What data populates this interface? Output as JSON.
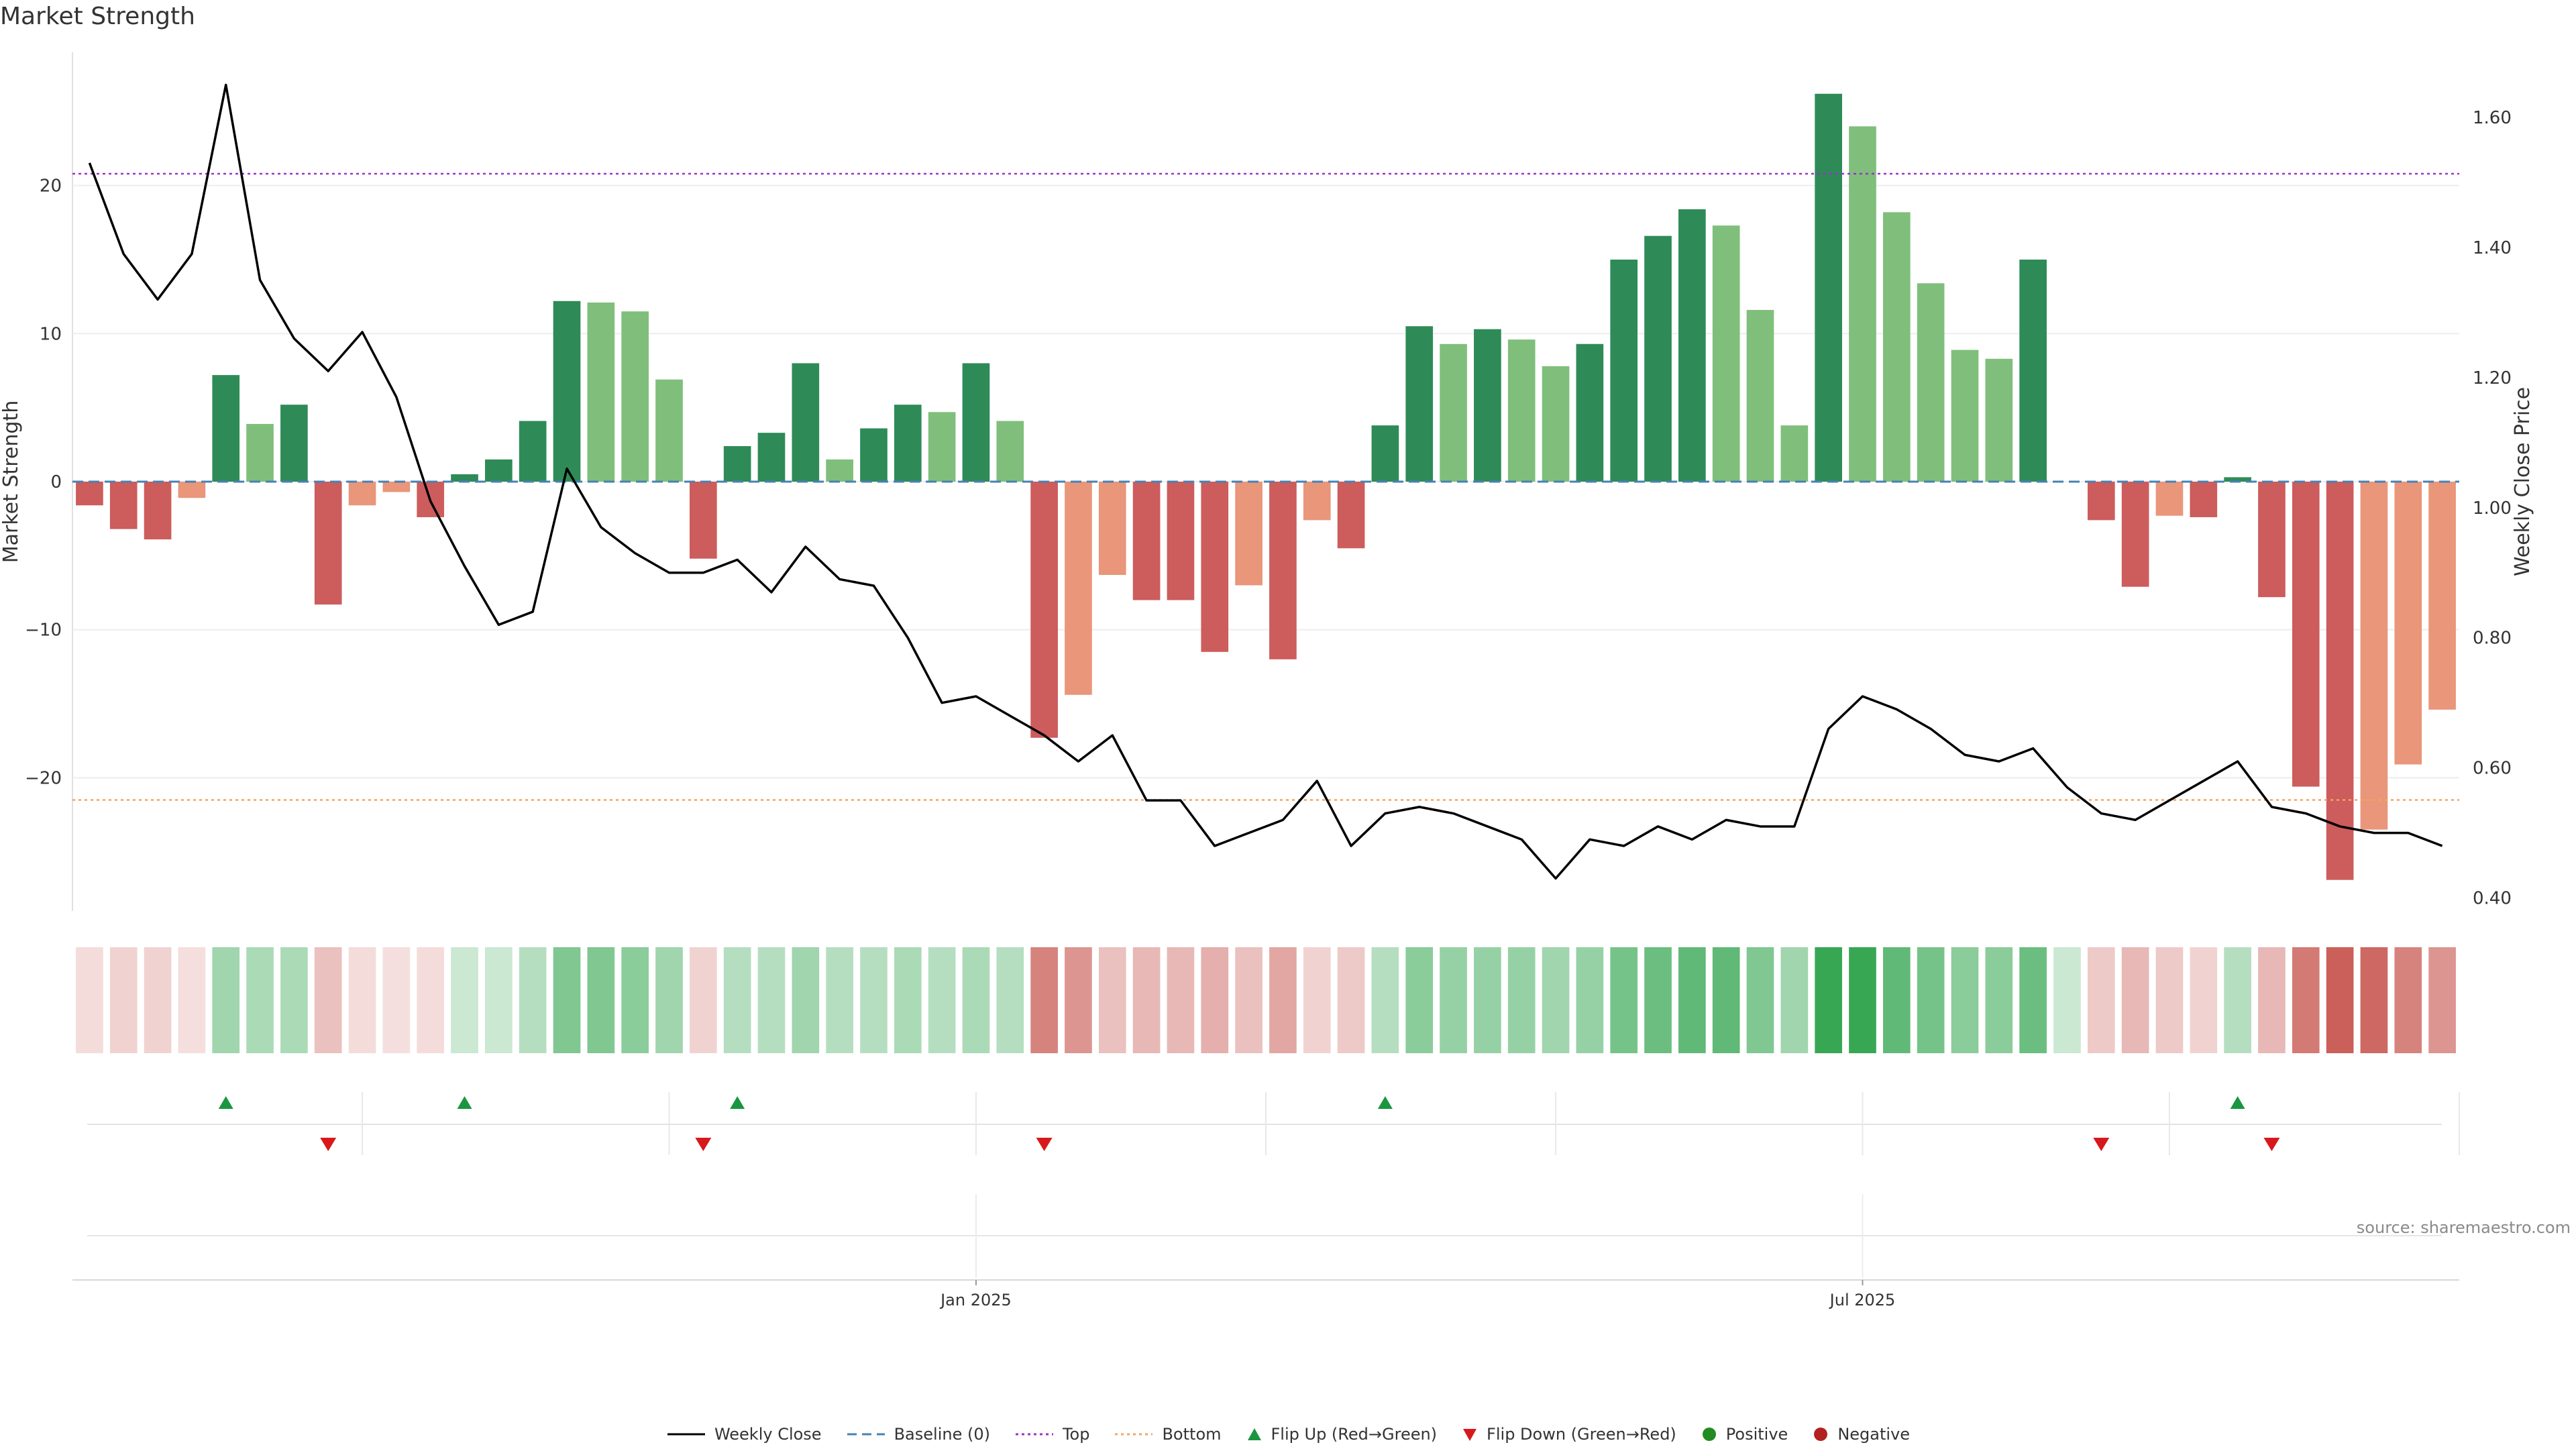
{
  "title": "Market Strength",
  "source": "source: sharemaestro.com",
  "colors": {
    "pos_dark": "#2e8b57",
    "pos_light": "#7fbf7b",
    "neg_dark": "#cd5c5c",
    "neg_light": "#e9967a",
    "weekly_close": "#000000",
    "baseline": "#4682b4",
    "top": "#9932cc",
    "bottom": "#f4a460",
    "flip_up": "#1a9641",
    "flip_down": "#d7191c",
    "positive_dot": "#228b22",
    "negative_dot": "#b22222"
  },
  "legend": [
    {
      "key": "weekly_close",
      "label": "Weekly Close",
      "kind": "line"
    },
    {
      "key": "baseline",
      "label": "Baseline (0)",
      "kind": "dash"
    },
    {
      "key": "top",
      "label": "Top",
      "kind": "dot"
    },
    {
      "key": "bottom",
      "label": "Bottom",
      "kind": "dot"
    },
    {
      "key": "flip_up",
      "label": "Flip Up (Red→Green)",
      "kind": "tri-up"
    },
    {
      "key": "flip_down",
      "label": "Flip Down (Green→Red)",
      "kind": "tri-down"
    },
    {
      "key": "positive_dot",
      "label": "Positive",
      "kind": "circle"
    },
    {
      "key": "negative_dot",
      "label": "Negative",
      "kind": "circle"
    }
  ],
  "chart_data": {
    "type": "bar",
    "ylabel_left": "Market Strength",
    "ylabel_right": "Weekly Close Price",
    "y_left": {
      "min": -29,
      "max": 29,
      "ticks": [
        -20,
        -10,
        0,
        10,
        20
      ]
    },
    "y_right": {
      "min": 0.38,
      "max": 1.7,
      "ticks": [
        "0.40",
        "0.60",
        "0.80",
        "1.00",
        "1.20",
        "1.40",
        "1.60"
      ]
    },
    "x_ticks": [
      {
        "index": 26,
        "label": "Jan 2025"
      },
      {
        "index": 52,
        "label": "Jul 2025"
      }
    ],
    "top_level": 20.8,
    "bottom_level": -21.5,
    "baseline": 0,
    "strength": [
      -1.6,
      -3.2,
      -3.9,
      -1.1,
      7.2,
      3.9,
      5.2,
      -8.3,
      -1.6,
      -0.7,
      -2.4,
      0.5,
      1.5,
      4.1,
      12.2,
      12.1,
      11.5,
      6.9,
      -5.2,
      2.4,
      3.3,
      8.0,
      1.5,
      3.6,
      5.2,
      4.7,
      8.0,
      4.1,
      -17.3,
      -14.4,
      -6.3,
      -8.0,
      -8.0,
      -11.5,
      -7.0,
      -12.0,
      -2.6,
      -4.5,
      3.8,
      10.5,
      9.3,
      10.3,
      9.6,
      7.8,
      9.3,
      15.0,
      16.6,
      18.4,
      17.3,
      11.6,
      3.8,
      26.2,
      24.0,
      18.2,
      13.4,
      8.9,
      8.3,
      15.0,
      0.0,
      -2.6,
      -7.1,
      -2.3,
      -2.4,
      0.3,
      -7.8,
      -20.6,
      -26.9,
      -23.5,
      -19.1,
      -15.4
    ],
    "strength_shade": [
      "dark",
      "dark",
      "dark",
      "light",
      "dark",
      "light",
      "dark",
      "dark",
      "light",
      "light",
      "dark",
      "dark",
      "dark",
      "dark",
      "dark",
      "light",
      "light",
      "light",
      "dark",
      "dark",
      "dark",
      "dark",
      "light",
      "dark",
      "dark",
      "light",
      "dark",
      "light",
      "dark",
      "light",
      "light",
      "dark",
      "dark",
      "dark",
      "light",
      "dark",
      "light",
      "dark",
      "dark",
      "dark",
      "light",
      "dark",
      "light",
      "light",
      "dark",
      "dark",
      "dark",
      "dark",
      "light",
      "light",
      "light",
      "dark",
      "light",
      "light",
      "light",
      "light",
      "light",
      "dark",
      "light",
      "dark",
      "dark",
      "light",
      "dark",
      "dark",
      "dark",
      "dark",
      "dark",
      "light",
      "light",
      "light"
    ],
    "weekly_close": [
      1.53,
      1.39,
      1.32,
      1.39,
      1.65,
      1.35,
      1.26,
      1.21,
      1.27,
      1.17,
      1.01,
      0.91,
      0.82,
      0.84,
      1.06,
      0.97,
      0.93,
      0.9,
      0.9,
      0.92,
      0.87,
      0.94,
      0.89,
      0.88,
      0.8,
      0.7,
      0.71,
      0.68,
      0.65,
      0.61,
      0.65,
      0.55,
      0.55,
      0.48,
      0.5,
      0.52,
      0.58,
      0.48,
      0.53,
      0.54,
      0.53,
      0.51,
      0.49,
      0.43,
      0.49,
      0.48,
      0.51,
      0.49,
      0.52,
      0.51,
      0.51,
      0.66,
      0.71,
      0.69,
      0.66,
      0.62,
      0.61,
      0.63,
      0.57,
      0.53,
      0.52,
      0.55,
      0.58,
      0.61,
      0.54,
      0.53,
      0.51,
      0.5,
      0.5,
      0.48
    ],
    "heat_intensity": [
      0.2,
      0.25,
      0.25,
      0.18,
      0.45,
      0.4,
      0.4,
      0.35,
      0.2,
      0.18,
      0.2,
      0.25,
      0.25,
      0.35,
      0.6,
      0.6,
      0.55,
      0.45,
      0.25,
      0.35,
      0.35,
      0.45,
      0.35,
      0.35,
      0.4,
      0.35,
      0.4,
      0.35,
      0.7,
      0.6,
      0.35,
      0.4,
      0.4,
      0.45,
      0.35,
      0.5,
      0.25,
      0.3,
      0.35,
      0.55,
      0.5,
      0.5,
      0.5,
      0.45,
      0.5,
      0.65,
      0.7,
      0.75,
      0.75,
      0.6,
      0.45,
      0.95,
      0.95,
      0.75,
      0.65,
      0.55,
      0.55,
      0.7,
      0.25,
      0.3,
      0.4,
      0.3,
      0.25,
      0.35,
      0.4,
      0.75,
      0.9,
      0.85,
      0.7,
      0.6
    ],
    "heat_sign": [
      "neg",
      "neg",
      "neg",
      "neg",
      "pos",
      "pos",
      "pos",
      "neg",
      "neg",
      "neg",
      "neg",
      "pos",
      "pos",
      "pos",
      "pos",
      "pos",
      "pos",
      "pos",
      "neg",
      "pos",
      "pos",
      "pos",
      "pos",
      "pos",
      "pos",
      "pos",
      "pos",
      "pos",
      "neg",
      "neg",
      "neg",
      "neg",
      "neg",
      "neg",
      "neg",
      "neg",
      "neg",
      "neg",
      "pos",
      "pos",
      "pos",
      "pos",
      "pos",
      "pos",
      "pos",
      "pos",
      "pos",
      "pos",
      "pos",
      "pos",
      "pos",
      "pos",
      "pos",
      "pos",
      "pos",
      "pos",
      "pos",
      "pos",
      "pos",
      "neg",
      "neg",
      "neg",
      "neg",
      "pos",
      "neg",
      "neg",
      "neg",
      "neg",
      "neg",
      "neg"
    ],
    "flip_up": [
      4,
      11,
      19,
      38,
      63
    ],
    "flip_down": [
      7,
      18,
      28,
      59,
      64
    ],
    "flip_boundaries": [
      8,
      17,
      26,
      34.5,
      43,
      52,
      61,
      69.5
    ]
  }
}
